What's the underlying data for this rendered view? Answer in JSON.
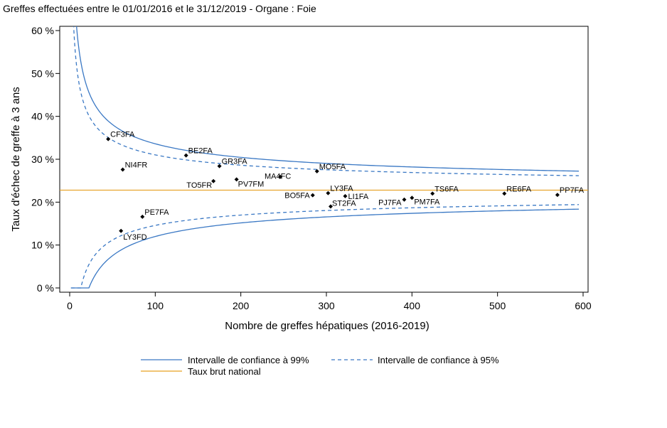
{
  "title": "Greffes effectuées entre le 01/01/2016 et le 31/12/2019 - Organe : Foie",
  "chart_data": {
    "type": "scatter",
    "xlabel": "Nombre de greffes hépatiques (2016-2019)",
    "ylabel": "Taux d'échec de greffe à 3 ans",
    "xlim": [
      0,
      600
    ],
    "ylim": [
      0,
      60
    ],
    "x_ticks": [
      "0",
      "100",
      "200",
      "300",
      "400",
      "500",
      "600"
    ],
    "y_ticks": [
      "0 %",
      "10 %",
      "20 %",
      "30 %",
      "40 %",
      "50 %",
      "60 %"
    ],
    "national_rate": 22.8,
    "legend": {
      "ci99": "Intervalle de confiance à 99%",
      "ci95": "Intervalle de confiance à 95%",
      "national": "Taux brut national"
    },
    "colors": {
      "ci": "#3a78c4",
      "national": "#e6a020",
      "points": "#000000"
    },
    "points": [
      {
        "label": "CF3FA",
        "x": 45,
        "y": 34.7
      },
      {
        "label": "NI4FR",
        "x": 62,
        "y": 27.6
      },
      {
        "label": "LY3FD",
        "x": 60,
        "y": 13.3
      },
      {
        "label": "PE7FA",
        "x": 85,
        "y": 16.6
      },
      {
        "label": "BE2FA",
        "x": 136,
        "y": 30.9
      },
      {
        "label": "TO5FR",
        "x": 168,
        "y": 24.9
      },
      {
        "label": "GR3FA",
        "x": 175,
        "y": 28.4
      },
      {
        "label": "PV7FM",
        "x": 195,
        "y": 25.3
      },
      {
        "label": "MA4FC",
        "x": 246,
        "y": 25.9
      },
      {
        "label": "BO5FA",
        "x": 284,
        "y": 21.6
      },
      {
        "label": "MO5FA",
        "x": 289,
        "y": 27.2
      },
      {
        "label": "LY3FA",
        "x": 302,
        "y": 22.1
      },
      {
        "label": "ST2FA",
        "x": 305,
        "y": 19.0
      },
      {
        "label": "LI1FA",
        "x": 322,
        "y": 21.4
      },
      {
        "label": "PJ7FA",
        "x": 391,
        "y": 20.6
      },
      {
        "label": "PM7FA",
        "x": 400,
        "y": 21.0
      },
      {
        "label": "TS6FA",
        "x": 424,
        "y": 22.0
      },
      {
        "label": "RE6FA",
        "x": 508,
        "y": 22.0
      },
      {
        "label": "PP7FA",
        "x": 570,
        "y": 21.7
      }
    ]
  }
}
